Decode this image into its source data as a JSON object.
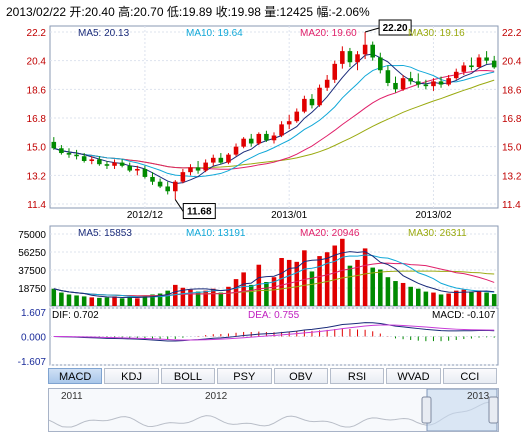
{
  "header": {
    "date": "2013/02/22",
    "open_label": "开:",
    "open": "20.40",
    "high_label": "高:",
    "high": "20.70",
    "low_label": "低:",
    "low": "19.89",
    "close_label": "收:",
    "close": "19.98",
    "volume_label": "量:",
    "volume": "12425",
    "change_label": "幅:",
    "change": "-2.06%"
  },
  "colors": {
    "up": "#e00000",
    "down": "#008a00",
    "ma5": "#1a2b7a",
    "ma10": "#11a8d8",
    "ma20": "#e0206a",
    "ma30": "#9aaa10"
  },
  "tabs": [
    "MACD",
    "KDJ",
    "BOLL",
    "PSY",
    "OBV",
    "RSI",
    "WVAD",
    "CCI"
  ],
  "active_tab": "MACD",
  "navigator": {
    "labels": [
      "2011",
      "2012",
      "2013"
    ]
  },
  "chart_data": [
    {
      "type": "candlestick",
      "legend": [
        {
          "label": "MA5: 20.13",
          "color_key": "ma5"
        },
        {
          "label": "MA10: 19.64",
          "color_key": "ma10"
        },
        {
          "label": "MA20: 19.60",
          "color_key": "ma20"
        },
        {
          "label": "MA30: 19.16",
          "color_key": "ma30"
        }
      ],
      "x_tick_labels": [
        "2012/12",
        "2013/01",
        "2013/02"
      ],
      "x_tick_index": [
        12,
        31,
        50
      ],
      "y_ticks": [
        11.4,
        13.2,
        15.0,
        16.8,
        18.6,
        20.4,
        22.2
      ],
      "ylim": [
        11.4,
        22.2
      ],
      "annotations": [
        {
          "label": "22.20",
          "index": 41,
          "value": 22.2
        },
        {
          "label": "11.68",
          "index": 16,
          "value": 11.68
        }
      ],
      "candles": [
        [
          15.3,
          15.6,
          14.8,
          14.9
        ],
        [
          14.9,
          15.1,
          14.5,
          14.6
        ],
        [
          14.6,
          14.9,
          14.3,
          14.5
        ],
        [
          14.5,
          14.8,
          14.2,
          14.4
        ],
        [
          14.4,
          14.6,
          14.0,
          14.1
        ],
        [
          14.1,
          14.4,
          13.9,
          14.2
        ],
        [
          14.2,
          14.4,
          13.8,
          13.9
        ],
        [
          13.9,
          14.1,
          13.6,
          13.8
        ],
        [
          13.8,
          14.2,
          13.6,
          14.0
        ],
        [
          14.0,
          14.2,
          13.7,
          13.8
        ],
        [
          13.8,
          14.0,
          13.4,
          13.5
        ],
        [
          13.5,
          13.8,
          13.2,
          13.6
        ],
        [
          13.6,
          13.8,
          13.0,
          13.1
        ],
        [
          13.1,
          13.4,
          12.6,
          12.8
        ],
        [
          12.8,
          13.0,
          12.4,
          12.5
        ],
        [
          12.5,
          12.8,
          12.0,
          12.2
        ],
        [
          12.2,
          12.9,
          11.68,
          12.8
        ],
        [
          12.8,
          13.6,
          12.7,
          13.4
        ],
        [
          13.4,
          13.9,
          13.2,
          13.7
        ],
        [
          13.7,
          14.1,
          13.3,
          13.5
        ],
        [
          13.5,
          14.2,
          13.4,
          14.0
        ],
        [
          14.0,
          14.5,
          13.8,
          14.3
        ],
        [
          14.3,
          14.6,
          13.9,
          14.0
        ],
        [
          14.0,
          14.6,
          13.9,
          14.5
        ],
        [
          14.5,
          15.2,
          14.4,
          15.0
        ],
        [
          15.0,
          15.6,
          14.9,
          15.5
        ],
        [
          15.5,
          15.8,
          15.0,
          15.2
        ],
        [
          15.2,
          15.9,
          15.1,
          15.8
        ],
        [
          15.8,
          16.0,
          15.3,
          15.4
        ],
        [
          15.4,
          15.9,
          15.2,
          15.7
        ],
        [
          15.7,
          16.6,
          15.6,
          16.4
        ],
        [
          16.4,
          17.0,
          16.1,
          16.6
        ],
        [
          16.6,
          17.4,
          16.5,
          17.2
        ],
        [
          17.2,
          18.2,
          17.1,
          18.0
        ],
        [
          18.0,
          18.3,
          17.4,
          17.6
        ],
        [
          17.6,
          18.9,
          17.5,
          18.7
        ],
        [
          18.7,
          19.5,
          18.5,
          19.2
        ],
        [
          19.2,
          20.4,
          19.0,
          20.2
        ],
        [
          20.2,
          21.3,
          19.9,
          21.0
        ],
        [
          21.0,
          21.2,
          20.0,
          20.3
        ],
        [
          20.3,
          21.0,
          19.8,
          20.8
        ],
        [
          20.8,
          22.2,
          20.5,
          21.4
        ],
        [
          21.4,
          21.6,
          20.4,
          20.6
        ],
        [
          20.6,
          20.9,
          19.6,
          19.8
        ],
        [
          19.8,
          20.1,
          18.8,
          19.0
        ],
        [
          19.0,
          19.4,
          18.4,
          18.6
        ],
        [
          18.6,
          19.5,
          18.5,
          19.3
        ],
        [
          19.3,
          19.7,
          18.9,
          19.1
        ],
        [
          19.1,
          19.6,
          18.7,
          18.9
        ],
        [
          18.9,
          19.2,
          18.6,
          18.8
        ],
        [
          18.8,
          19.3,
          18.5,
          19.1
        ],
        [
          19.1,
          19.4,
          18.7,
          18.9
        ],
        [
          18.9,
          19.5,
          18.8,
          19.3
        ],
        [
          19.3,
          19.9,
          19.2,
          19.7
        ],
        [
          19.7,
          20.3,
          19.5,
          20.1
        ],
        [
          20.1,
          20.6,
          19.8,
          20.0
        ],
        [
          20.0,
          20.8,
          19.9,
          20.6
        ],
        [
          20.6,
          21.0,
          20.2,
          20.4
        ],
        [
          20.4,
          20.7,
          19.89,
          19.98
        ]
      ]
    },
    {
      "type": "bar",
      "legend": [
        {
          "label": "MA5: 15853",
          "color_key": "ma5"
        },
        {
          "label": "MA10: 13191",
          "color_key": "ma10"
        },
        {
          "label": "MA20: 20946",
          "color_key": "ma20"
        },
        {
          "label": "MA30: 26311",
          "color_key": "ma30"
        }
      ],
      "y_ticks": [
        18750,
        37500,
        56250,
        75000
      ],
      "ylim": [
        0,
        75000
      ],
      "volumes": [
        18000,
        14000,
        12000,
        11000,
        10000,
        9000,
        8500,
        9000,
        10000,
        8000,
        9500,
        8000,
        11000,
        12000,
        13000,
        16000,
        22000,
        19000,
        17000,
        15000,
        16000,
        18000,
        14000,
        20000,
        28000,
        35000,
        22000,
        43000,
        25000,
        30000,
        50000,
        48000,
        46000,
        58000,
        36000,
        52000,
        56000,
        63000,
        70000,
        42000,
        48000,
        60000,
        40000,
        38000,
        30000,
        26000,
        24000,
        20000,
        18000,
        15000,
        14000,
        12000,
        13000,
        16000,
        17000,
        15000,
        16000,
        14000,
        12425
      ]
    },
    {
      "type": "line",
      "legend": [
        {
          "label": "DIF: 0.702",
          "color_key": "ma5"
        },
        {
          "label": "DEA: 0.755",
          "color_key": "ma20"
        },
        {
          "label": "MACD: -0.107",
          "color_key": "ma5"
        }
      ],
      "y_tick_labels": [
        "1.607",
        "0.000",
        "-1.607"
      ],
      "y_ticks": [
        1.607,
        0.0,
        -1.607
      ],
      "ylim": [
        -1.607,
        1.607
      ]
    }
  ]
}
